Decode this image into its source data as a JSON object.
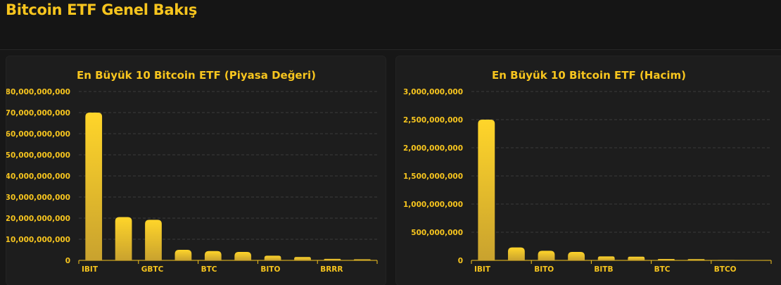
{
  "page": {
    "title": "Bitcoin ETF Genel Bakış"
  },
  "colors": {
    "accent": "#f7c51e",
    "bar_top": "#ffd52a",
    "bar_bottom": "#c9a22e",
    "background": "#151515",
    "panel": "#1d1d1d",
    "grid": "#3a3a3a"
  },
  "chart_data": [
    {
      "type": "bar",
      "title": "En Büyük 10 Bitcoin ETF (Piyasa Değeri)",
      "xlabel": "",
      "ylabel": "",
      "categories": [
        "IBIT",
        "",
        "GBTC",
        "",
        "BTC",
        "",
        "BITO",
        "",
        "BRRR",
        ""
      ],
      "values": [
        70000000000,
        20500000000,
        19200000000,
        5000000000,
        4400000000,
        4000000000,
        2200000000,
        1600000000,
        700000000,
        500000000
      ],
      "ylim": [
        0,
        80000000000
      ],
      "yticks": [
        0,
        10000000000,
        20000000000,
        30000000000,
        40000000000,
        50000000000,
        60000000000,
        70000000000,
        80000000000
      ],
      "ytick_labels": [
        "0",
        "10,000,000,000",
        "20,000,000,000",
        "30,000,000,000",
        "40,000,000,000",
        "50,000,000,000",
        "60,000,000,000",
        "70,000,000,000",
        "80,000,000,000"
      ],
      "grid": true,
      "legend": "none"
    },
    {
      "type": "bar",
      "title": "En Büyük 10 Bitcoin ETF (Hacim)",
      "xlabel": "",
      "ylabel": "",
      "categories": [
        "IBIT",
        "",
        "BITO",
        "",
        "BITB",
        "",
        "BTC",
        "",
        "BTCO",
        ""
      ],
      "values": [
        2500000000,
        230000000,
        170000000,
        150000000,
        70000000,
        65000000,
        25000000,
        22000000,
        8000000,
        6000000
      ],
      "ylim": [
        0,
        3000000000
      ],
      "yticks": [
        0,
        500000000,
        1000000000,
        1500000000,
        2000000000,
        2500000000,
        3000000000
      ],
      "ytick_labels": [
        "0",
        "500,000,000",
        "1,000,000,000",
        "1,500,000,000",
        "2,000,000,000",
        "2,500,000,000",
        "3,000,000,000"
      ],
      "grid": true,
      "legend": "none"
    }
  ]
}
